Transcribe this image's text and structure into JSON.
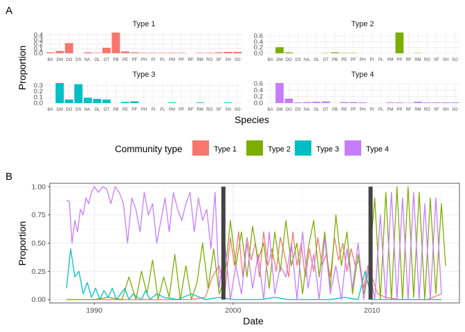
{
  "panelA": {
    "letter": "A",
    "ylabel": "Proportion",
    "xlabel": "Species",
    "species": [
      "BA",
      "DM",
      "DO",
      "DS",
      "NA.",
      "OL",
      "OT",
      "PB",
      "PE",
      "PF",
      "PH",
      "PI",
      "PL",
      "PM",
      "PP",
      "RF",
      "RM",
      "RO",
      "SF",
      "SH",
      "SO"
    ]
  },
  "panelB": {
    "letter": "B",
    "ylabel": "Proportion",
    "xlabel": "Date"
  },
  "legend": {
    "title": "Community type",
    "entries": [
      {
        "label": "Type 1",
        "color": "#F8766D"
      },
      {
        "label": "Type 2",
        "color": "#7CAE00"
      },
      {
        "label": "Type 3",
        "color": "#00BFC4"
      },
      {
        "label": "Type 4",
        "color": "#C77CFF"
      }
    ]
  },
  "chart_data": [
    {
      "type": "bar",
      "title": "Type 1",
      "color": "#F8766D",
      "categories": [
        "BA",
        "DM",
        "DO",
        "DS",
        "NA.",
        "OL",
        "OT",
        "PB",
        "PE",
        "PF",
        "PH",
        "PI",
        "PL",
        "PM",
        "PP",
        "RF",
        "RM",
        "RO",
        "SF",
        "SH",
        "SO"
      ],
      "values": [
        0.02,
        0.05,
        0.22,
        0.0,
        0.02,
        0.01,
        0.12,
        0.45,
        0.04,
        0.02,
        0.01,
        0.01,
        0.01,
        0.01,
        0.01,
        0.0,
        0.01,
        0.01,
        0.02,
        0.03,
        0.03
      ],
      "ylabel": "Proportion",
      "yticks": [
        "0.0",
        "0.1",
        "0.2",
        "0.3",
        "0.4"
      ],
      "ylim": [
        0,
        0.45
      ]
    },
    {
      "type": "bar",
      "title": "Type 2",
      "color": "#7CAE00",
      "categories": [
        "BA",
        "DM",
        "DO",
        "DS",
        "NA.",
        "OL",
        "OT",
        "PB",
        "PE",
        "PF",
        "PH",
        "PI",
        "PL",
        "PM",
        "PP",
        "RF",
        "RM",
        "RO",
        "SF",
        "SH",
        "SO"
      ],
      "values": [
        0.0,
        0.21,
        0.03,
        0.0,
        0.0,
        0.0,
        0.01,
        0.03,
        0.01,
        0.01,
        0.0,
        0.0,
        0.0,
        0.0,
        0.72,
        0.0,
        0.01,
        0.0,
        0.0,
        0.0,
        0.0
      ],
      "ylabel": "Proportion",
      "yticks": [
        "0.0",
        "0.2",
        "0.4",
        "0.6"
      ],
      "ylim": [
        0,
        0.72
      ]
    },
    {
      "type": "bar",
      "title": "Type 3",
      "color": "#00BFC4",
      "categories": [
        "BA",
        "DM",
        "DO",
        "DS",
        "NA.",
        "OL",
        "OT",
        "PB",
        "PE",
        "PF",
        "PH",
        "PI",
        "PL",
        "PM",
        "PP",
        "RF",
        "RM",
        "RO",
        "SF",
        "SH",
        "SO"
      ],
      "values": [
        0.0,
        0.34,
        0.06,
        0.32,
        0.09,
        0.07,
        0.06,
        0.0,
        0.02,
        0.03,
        0.0,
        0.0,
        0.0,
        0.01,
        0.0,
        0.0,
        0.01,
        0.0,
        0.0,
        0.01,
        0.0
      ],
      "ylabel": "Proportion",
      "yticks": [
        "0.0",
        "0.1",
        "0.2",
        "0.3"
      ],
      "ylim": [
        0,
        0.34
      ]
    },
    {
      "type": "bar",
      "title": "Type 4",
      "color": "#C77CFF",
      "categories": [
        "BA",
        "DM",
        "DO",
        "DS",
        "NA.",
        "OL",
        "OT",
        "PB",
        "PE",
        "PF",
        "PH",
        "PI",
        "PL",
        "PM",
        "PP",
        "RF",
        "RM",
        "RO",
        "SF",
        "SH",
        "SO"
      ],
      "values": [
        0.0,
        0.62,
        0.14,
        0.02,
        0.03,
        0.04,
        0.05,
        0.0,
        0.03,
        0.03,
        0.02,
        0.0,
        0.0,
        0.02,
        0.02,
        0.01,
        0.04,
        0.02,
        0.02,
        0.02,
        0.02
      ],
      "ylabel": "Proportion",
      "yticks": [
        "0.0",
        "0.2",
        "0.4",
        "0.6"
      ],
      "ylim": [
        0,
        0.62
      ]
    },
    {
      "type": "line",
      "xlabel": "Date",
      "ylabel": "Proportion",
      "xticks": [
        1990,
        2000,
        2010
      ],
      "yticks": [
        "0.00",
        "0.25",
        "0.50",
        "0.75",
        "1.00"
      ],
      "xlim": [
        1986.8,
        2016.3
      ],
      "ylim": [
        -0.03,
        1.03
      ],
      "changepoints": [
        1999.3,
        2009.9
      ],
      "grid": true,
      "series": [
        {
          "name": "Type 1",
          "color": "#F8766D",
          "x": [
            1988,
            1992,
            1995,
            1997,
            1998,
            1998.5,
            1999,
            1999.4,
            1999.8,
            2000.1,
            2000.4,
            2000.7,
            2001,
            2001.3,
            2001.6,
            2001.9,
            2002.2,
            2002.5,
            2002.8,
            2003.1,
            2003.4,
            2003.7,
            2004,
            2004.3,
            2004.6,
            2004.9,
            2005.2,
            2005.5,
            2005.8,
            2006.1,
            2006.4,
            2006.7,
            2007,
            2007.3,
            2007.6,
            2007.9,
            2008.2,
            2008.5,
            2008.8,
            2009.1,
            2009.4,
            2009.7,
            2010,
            2010.4,
            2011,
            2012,
            2013,
            2014,
            2015
          ],
          "y": [
            0,
            0,
            0,
            0,
            0.02,
            0.2,
            0.3,
            0.05,
            0.55,
            0.3,
            0.6,
            0.2,
            0.55,
            0.35,
            0.5,
            0.2,
            0.6,
            0.3,
            0.45,
            0.25,
            0.55,
            0.4,
            0.2,
            0.6,
            0.3,
            0.5,
            0.2,
            0.45,
            0.25,
            0.55,
            0.3,
            0.4,
            0.2,
            0.55,
            0.35,
            0.5,
            0.25,
            0.45,
            0.3,
            0.35,
            0.1,
            0.3,
            0.2,
            0.05,
            0.02,
            0,
            0,
            0,
            0.05
          ]
        },
        {
          "name": "Type 2",
          "color": "#7CAE00",
          "x": [
            1988,
            1990,
            1991,
            1992,
            1992.5,
            1993,
            1993.4,
            1993.8,
            1994.2,
            1994.6,
            1995,
            1995.4,
            1995.8,
            1996.2,
            1996.6,
            1997,
            1997.4,
            1997.8,
            1998.2,
            1998.6,
            1999,
            1999.4,
            1999.8,
            2000.2,
            2000.6,
            2001,
            2001.4,
            2001.8,
            2002.2,
            2002.6,
            2003,
            2003.4,
            2003.8,
            2004.2,
            2004.6,
            2005,
            2005.4,
            2005.8,
            2006.2,
            2006.6,
            2007,
            2007.4,
            2007.8,
            2008.2,
            2008.6,
            2009,
            2009.4,
            2009.8,
            2010.2,
            2010.6,
            2011,
            2011.4,
            2011.8,
            2012.2,
            2012.6,
            2013,
            2013.4,
            2013.8,
            2014.2,
            2014.6,
            2015,
            2015.3
          ],
          "y": [
            0,
            0,
            0.02,
            0,
            0.2,
            0,
            0.25,
            0.05,
            0.35,
            0,
            0.2,
            0.02,
            0.4,
            0,
            0.3,
            0,
            0.15,
            0.5,
            0.1,
            0.45,
            0.05,
            0.2,
            0.7,
            0.3,
            0.6,
            0.2,
            0.65,
            0.35,
            0.5,
            0.1,
            0.6,
            0.25,
            0.7,
            0.3,
            0.5,
            0.05,
            0.45,
            0.7,
            0.2,
            0.6,
            0.1,
            0.75,
            0.3,
            0.6,
            0.05,
            0.4,
            0.05,
            0.3,
            0.9,
            0.0,
            0.95,
            0.0,
            1.0,
            0.0,
            1.0,
            0.02,
            0.95,
            0.0,
            0.9,
            0.05,
            0.85,
            0.3
          ]
        },
        {
          "name": "Type 3",
          "color": "#00BFC4",
          "x": [
            1988,
            1988.3,
            1988.6,
            1988.9,
            1989.2,
            1989.5,
            1989.8,
            1990.1,
            1990.4,
            1990.7,
            1991,
            1991.3,
            1991.6,
            1991.9,
            1992.2,
            1992.5,
            1992.8,
            1993.1,
            1993.4,
            1993.7,
            1994,
            1994.5,
            1995,
            1996,
            1997,
            1998,
            1999,
            2000,
            2001,
            2002,
            2003,
            2004,
            2005,
            2006,
            2007,
            2008,
            2009,
            2009.5,
            2010,
            2011,
            2012,
            2013,
            2014,
            2015
          ],
          "y": [
            0.1,
            0.45,
            0.2,
            0.25,
            0.05,
            0.15,
            0.02,
            0.1,
            0.0,
            0.08,
            0.02,
            0.1,
            0.0,
            0.05,
            0.1,
            0.0,
            0.05,
            0.02,
            0.0,
            0.08,
            0.0,
            0.05,
            0.02,
            0.0,
            0.05,
            0.0,
            0.02,
            0.0,
            0.0,
            0.0,
            0.02,
            0.0,
            0.0,
            0.0,
            0.0,
            0.02,
            0.0,
            0.25,
            0.0,
            0.0,
            0.0,
            0.0,
            0.0,
            0.0
          ]
        },
        {
          "name": "Type 4",
          "color": "#C77CFF",
          "x": [
            1988,
            1988.2,
            1988.4,
            1988.6,
            1988.8,
            1989,
            1989.2,
            1989.4,
            1989.6,
            1989.8,
            1990,
            1990.3,
            1990.6,
            1990.9,
            1991.2,
            1991.5,
            1991.8,
            1992.1,
            1992.4,
            1992.7,
            1993,
            1993.3,
            1993.6,
            1993.9,
            1994.2,
            1994.5,
            1994.8,
            1995.1,
            1995.4,
            1995.7,
            1996,
            1996.3,
            1996.6,
            1996.9,
            1997.2,
            1997.5,
            1997.8,
            1998.1,
            1998.4,
            1998.7,
            1999,
            1999.4,
            1999.8,
            2000.2,
            2000.6,
            2001,
            2001.4,
            2001.8,
            2002.2,
            2002.6,
            2003,
            2003.4,
            2003.8,
            2004.2,
            2004.6,
            2005,
            2005.4,
            2005.8,
            2006.2,
            2006.6,
            2007,
            2007.4,
            2007.8,
            2008.2,
            2008.6,
            2009,
            2009.4,
            2009.8,
            2010.2,
            2010.6,
            2011,
            2011.4,
            2011.8,
            2012.2,
            2012.6,
            2013,
            2013.4,
            2013.8,
            2014.2,
            2014.6,
            2015
          ],
          "y": [
            0.88,
            0.87,
            0.5,
            0.7,
            0.6,
            0.8,
            0.75,
            0.9,
            0.85,
            0.95,
            1.0,
            0.95,
            1.0,
            0.98,
            0.85,
            1.0,
            0.95,
            0.85,
            0.5,
            0.9,
            0.8,
            0.6,
            0.95,
            0.75,
            0.85,
            0.5,
            0.7,
            0.9,
            0.6,
            0.95,
            0.8,
            0.7,
            0.85,
            0.95,
            0.6,
            0.9,
            0.7,
            0.8,
            0.45,
            0.95,
            0.1,
            0.5,
            0.0,
            0.3,
            0.05,
            0.5,
            0.1,
            0.4,
            0.0,
            0.6,
            0.05,
            0.3,
            0.2,
            0.5,
            0.0,
            0.6,
            0.1,
            0.4,
            0.0,
            0.55,
            0.05,
            0.3,
            0.0,
            0.45,
            0.1,
            0.5,
            0.0,
            0.3,
            0.0,
            0.75,
            0.0,
            0.95,
            0.0,
            0.9,
            0.0,
            0.95,
            0.0,
            0.85,
            0.0,
            0.9,
            0.05
          ]
        }
      ]
    }
  ]
}
